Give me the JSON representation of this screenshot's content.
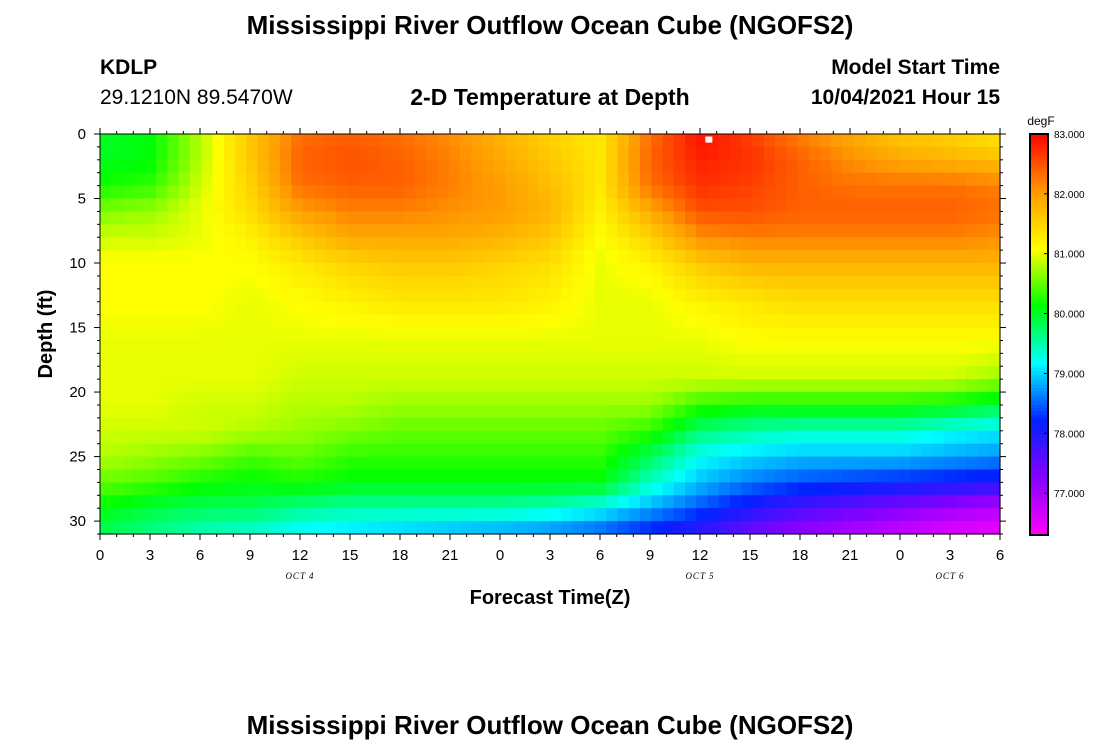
{
  "page": {
    "title_top": "Mississippi River Outflow Ocean Cube (NGOFS2)",
    "title_bottom": "Mississippi River Outflow Ocean Cube (NGOFS2)",
    "station": "KDLP",
    "coords": "29.1210N  89.5470W",
    "subtitle": "2-D Temperature at Depth",
    "model_start_label": "Model Start Time",
    "model_start_value": "10/04/2021 Hour 15"
  },
  "chart_data": {
    "type": "heatmap",
    "xlabel": "Forecast Time(Z)",
    "ylabel": "Depth (ft)",
    "x_range": [
      0,
      54
    ],
    "y_range": [
      0,
      31
    ],
    "y_inverted": true,
    "x_ticks": [
      0,
      3,
      6,
      9,
      12,
      15,
      18,
      21,
      24,
      27,
      30,
      33,
      36,
      39,
      42,
      45,
      48,
      51,
      54
    ],
    "x_tick_labels": [
      "0",
      "3",
      "6",
      "9",
      "12",
      "15",
      "18",
      "21",
      "0",
      "3",
      "6",
      "9",
      "12",
      "15",
      "18",
      "21",
      "0",
      "3",
      "6"
    ],
    "y_ticks": [
      0,
      5,
      10,
      15,
      20,
      25,
      30
    ],
    "y_tick_labels": [
      "0",
      "5",
      "10",
      "15",
      "20",
      "25",
      "30"
    ],
    "date_labels": [
      {
        "x": 12,
        "text": "OCT 4"
      },
      {
        "x": 36,
        "text": "OCT 5"
      },
      {
        "x": 51,
        "text": "OCT 6"
      }
    ],
    "colorbar": {
      "unit": "degF",
      "min": 76.3,
      "max": 83.0,
      "ticks": [
        77.0,
        78.0,
        79.0,
        80.0,
        81.0,
        82.0,
        83.0
      ],
      "tick_labels": [
        "77.000",
        "78.000",
        "79.000",
        "80.000",
        "81.000",
        "82.000",
        "83.000"
      ],
      "colormap": [
        "#ff00ff",
        "#8800ff",
        "#0022ff",
        "#00ffff",
        "#00ff00",
        "#ffff00",
        "#ff9900",
        "#ff0000"
      ]
    },
    "grid_depth_ft": [
      0,
      2,
      4,
      6,
      8,
      10,
      13,
      16,
      19,
      21,
      23,
      25,
      27,
      29,
      31
    ],
    "grid_time_hours": [
      0,
      3,
      6,
      9,
      12,
      15,
      18,
      21,
      24,
      27,
      30,
      33,
      36,
      39,
      42,
      45,
      48,
      51,
      54
    ],
    "values_degF": [
      [
        80.0,
        80.1,
        80.8,
        81.6,
        82.3,
        82.4,
        82.3,
        82.1,
        81.8,
        81.5,
        81.3,
        82.3,
        82.9,
        82.6,
        82.2,
        81.9,
        81.6,
        81.5,
        81.3
      ],
      [
        80.0,
        80.1,
        80.8,
        81.6,
        82.4,
        82.5,
        82.4,
        82.2,
        81.9,
        81.6,
        81.3,
        82.4,
        82.8,
        82.7,
        82.4,
        82.1,
        81.9,
        81.8,
        81.7
      ],
      [
        80.2,
        80.3,
        80.9,
        81.5,
        82.3,
        82.4,
        82.4,
        82.2,
        82.0,
        81.7,
        81.3,
        82.3,
        82.7,
        82.6,
        82.4,
        82.3,
        82.3,
        82.3,
        82.2
      ],
      [
        80.6,
        80.7,
        81.0,
        81.4,
        82.0,
        82.2,
        82.2,
        82.1,
        82.0,
        81.8,
        81.2,
        81.9,
        82.5,
        82.5,
        82.4,
        82.4,
        82.4,
        82.4,
        82.3
      ],
      [
        80.9,
        80.9,
        81.0,
        81.2,
        81.6,
        81.9,
        81.9,
        81.9,
        81.8,
        81.6,
        81.1,
        81.5,
        82.1,
        82.2,
        82.2,
        82.2,
        82.2,
        82.2,
        82.1
      ],
      [
        81.1,
        81.1,
        81.1,
        81.1,
        81.3,
        81.5,
        81.6,
        81.6,
        81.5,
        81.4,
        81.0,
        81.2,
        81.6,
        81.8,
        81.8,
        81.8,
        81.8,
        81.8,
        81.8
      ],
      [
        81.1,
        81.1,
        81.1,
        81.0,
        81.1,
        81.2,
        81.3,
        81.3,
        81.3,
        81.2,
        81.0,
        81.0,
        81.2,
        81.3,
        81.4,
        81.4,
        81.4,
        81.4,
        81.4
      ],
      [
        81.0,
        81.0,
        81.0,
        81.0,
        81.0,
        81.0,
        81.0,
        81.0,
        81.0,
        81.0,
        81.0,
        81.0,
        81.0,
        81.1,
        81.1,
        81.1,
        81.1,
        81.1,
        81.1
      ],
      [
        81.0,
        81.0,
        81.0,
        81.0,
        80.9,
        80.9,
        80.9,
        80.9,
        80.9,
        80.9,
        80.9,
        80.9,
        80.9,
        80.9,
        80.9,
        80.9,
        80.9,
        80.9,
        80.7
      ],
      [
        81.0,
        81.0,
        80.9,
        80.9,
        80.8,
        80.8,
        80.7,
        80.7,
        80.7,
        80.7,
        80.7,
        80.7,
        80.3,
        80.2,
        80.2,
        80.2,
        80.2,
        80.1,
        79.9
      ],
      [
        80.9,
        80.9,
        80.9,
        80.8,
        80.7,
        80.6,
        80.5,
        80.5,
        80.5,
        80.5,
        80.5,
        80.3,
        79.7,
        79.5,
        79.4,
        79.4,
        79.4,
        79.2,
        79.1
      ],
      [
        80.8,
        80.7,
        80.6,
        80.4,
        80.5,
        80.3,
        80.3,
        80.3,
        80.3,
        80.3,
        80.3,
        79.8,
        79.2,
        79.0,
        78.9,
        78.9,
        78.9,
        78.8,
        78.7
      ],
      [
        80.5,
        80.4,
        80.2,
        80.1,
        80.2,
        80.1,
        80.1,
        80.1,
        80.1,
        80.1,
        80.1,
        79.4,
        78.9,
        78.6,
        78.4,
        78.3,
        78.2,
        78.1,
        78.0
      ],
      [
        80.1,
        79.9,
        79.8,
        79.8,
        79.6,
        79.5,
        79.5,
        79.5,
        79.5,
        79.4,
        79.2,
        78.8,
        78.4,
        78.0,
        77.7,
        77.5,
        77.3,
        77.1,
        76.9
      ],
      [
        79.8,
        79.6,
        79.4,
        79.3,
        79.1,
        79.0,
        78.9,
        78.8,
        78.7,
        78.6,
        78.4,
        78.1,
        77.8,
        77.4,
        77.1,
        76.9,
        76.7,
        76.5,
        76.4
      ]
    ],
    "marker": {
      "x": 36.5,
      "y": 0.2
    }
  }
}
